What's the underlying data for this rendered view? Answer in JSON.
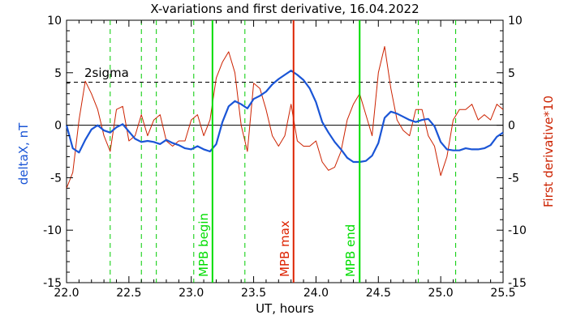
{
  "chart_data": {
    "type": "line",
    "title": "X-variations and first derivative, 16.04.2022",
    "xlabel": "UT, hours",
    "ylabel_left": "deltaX, nT",
    "ylabel_right": "First derivative*10",
    "xlim": [
      22.0,
      25.5
    ],
    "ylim": [
      -15,
      10
    ],
    "x_ticks": [
      "22.0",
      "22.5",
      "23.0",
      "23.5",
      "24.0",
      "24.5",
      "25.0",
      "25.5"
    ],
    "y_ticks": [
      "10",
      "5",
      "0",
      "-5",
      "-10",
      "-15"
    ],
    "grid": false,
    "threshold": {
      "label": "2sigma",
      "value": 4.1
    },
    "zero_line": 0,
    "dashed_markers_x": [
      22.35,
      22.6,
      22.72,
      23.02,
      23.43,
      24.82,
      25.12
    ],
    "markers": [
      {
        "label": "MPB begin",
        "x": 23.17,
        "color": "#00dd00"
      },
      {
        "label": "MPB max",
        "x": 23.82,
        "color": "#dd2200"
      },
      {
        "label": "MPB end",
        "x": 24.35,
        "color": "#00dd00"
      }
    ],
    "series": [
      {
        "color": "#1a55d6",
        "x": [
          22.0,
          22.05,
          22.1,
          22.15,
          22.2,
          22.25,
          22.3,
          22.35,
          22.4,
          22.45,
          22.5,
          22.55,
          22.6,
          22.65,
          22.7,
          22.75,
          22.8,
          22.85,
          22.9,
          22.95,
          23.0,
          23.05,
          23.1,
          23.15,
          23.2,
          23.25,
          23.3,
          23.35,
          23.4,
          23.45,
          23.5,
          23.55,
          23.6,
          23.65,
          23.7,
          23.75,
          23.8,
          23.85,
          23.9,
          23.95,
          24.0,
          24.05,
          24.1,
          24.15,
          24.2,
          24.25,
          24.3,
          24.35,
          24.4,
          24.45,
          24.5,
          24.55,
          24.6,
          24.65,
          24.7,
          24.75,
          24.8,
          24.85,
          24.9,
          24.95,
          25.0,
          25.05,
          25.1,
          25.15,
          25.2,
          25.25,
          25.3,
          25.35,
          25.4,
          25.45,
          25.5
        ],
        "values": [
          0.0,
          -2.2,
          -2.6,
          -1.4,
          -0.4,
          0.0,
          -0.5,
          -0.7,
          -0.2,
          0.1,
          -0.6,
          -1.3,
          -1.6,
          -1.5,
          -1.6,
          -1.8,
          -1.4,
          -1.7,
          -1.9,
          -2.2,
          -2.3,
          -2.0,
          -2.3,
          -2.5,
          -1.8,
          0.3,
          1.8,
          2.3,
          2.0,
          1.6,
          2.5,
          2.8,
          3.2,
          3.9,
          4.4,
          4.8,
          5.2,
          4.8,
          4.3,
          3.5,
          2.2,
          0.3,
          -0.7,
          -1.6,
          -2.3,
          -3.1,
          -3.5,
          -3.5,
          -3.4,
          -2.9,
          -1.7,
          0.7,
          1.3,
          1.1,
          0.8,
          0.5,
          0.3,
          0.5,
          0.6,
          -0.1,
          -1.6,
          -2.3,
          -2.4,
          -2.4,
          -2.2,
          -2.3,
          -2.3,
          -2.2,
          -1.9,
          -1.1,
          -0.7
        ]
      },
      {
        "color": "#cc2200",
        "x": [
          22.0,
          22.05,
          22.1,
          22.15,
          22.2,
          22.25,
          22.3,
          22.35,
          22.4,
          22.45,
          22.5,
          22.55,
          22.6,
          22.65,
          22.7,
          22.75,
          22.8,
          22.85,
          22.9,
          22.95,
          23.0,
          23.05,
          23.1,
          23.15,
          23.2,
          23.25,
          23.3,
          23.35,
          23.4,
          23.45,
          23.5,
          23.55,
          23.6,
          23.65,
          23.7,
          23.75,
          23.8,
          23.85,
          23.9,
          23.95,
          24.0,
          24.05,
          24.1,
          24.15,
          24.2,
          24.25,
          24.3,
          24.35,
          24.4,
          24.45,
          24.5,
          24.55,
          24.6,
          24.65,
          24.7,
          24.75,
          24.8,
          24.85,
          24.9,
          24.95,
          25.0,
          25.05,
          25.1,
          25.15,
          25.2,
          25.25,
          25.3,
          25.35,
          25.4,
          25.45,
          25.5
        ],
        "values": [
          -6.0,
          -4.5,
          0.5,
          4.2,
          3.0,
          1.5,
          -1.0,
          -2.5,
          1.5,
          1.8,
          -1.5,
          -1.0,
          1.0,
          -1.0,
          0.5,
          1.0,
          -1.5,
          -2.0,
          -1.5,
          -1.5,
          0.5,
          1.0,
          -1.0,
          0.5,
          4.5,
          6.0,
          7.0,
          5.0,
          0.0,
          -2.5,
          4.0,
          3.5,
          1.5,
          -1.0,
          -2.0,
          -1.0,
          2.0,
          -1.5,
          -2.0,
          -2.0,
          -1.5,
          -3.5,
          -4.3,
          -4.0,
          -2.5,
          0.5,
          2.0,
          3.0,
          1.0,
          -1.0,
          5.0,
          7.5,
          3.5,
          0.5,
          -0.5,
          -1.0,
          1.5,
          1.5,
          -1.0,
          -2.0,
          -4.8,
          -3.0,
          0.5,
          1.5,
          1.5,
          2.0,
          0.5,
          1.0,
          0.5,
          2.0,
          1.5
        ]
      }
    ]
  }
}
